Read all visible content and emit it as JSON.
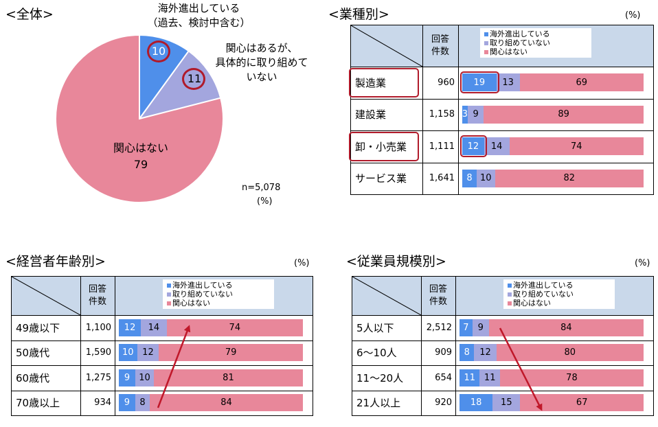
{
  "colors": {
    "s1": "#4f8fea",
    "s2": "#a3a6de",
    "s3": "#e8879a",
    "header": "#c9d8ea",
    "highlight": "#b01a2a"
  },
  "pie": {
    "title": "<全体>",
    "n_label": "n=5,078",
    "unit": "(%)",
    "label_s1_line1": "海外進出している",
    "label_s1_line2": "（過去、検討中含む）",
    "label_s2_line1": "関心はあるが、",
    "label_s2_line2": "具体的に取り組めて",
    "label_s2_line3": "いない",
    "label_s3": "関心はない"
  },
  "legend": {
    "s1": "海外進出している",
    "s2": "取り組めていない",
    "s3": "関心はない"
  },
  "col_header": {
    "line1": "回答",
    "line2": "件数"
  },
  "chart_data": [
    {
      "type": "pie",
      "title": "<全体>",
      "slices": [
        {
          "label": "海外進出している（過去、検討中含む）",
          "value": 10
        },
        {
          "label": "関心はあるが、具体的に取り組めていない",
          "value": 11
        },
        {
          "label": "関心はない",
          "value": 79
        }
      ],
      "annotation": "n=5,078",
      "unit": "(%)"
    },
    {
      "type": "bar",
      "stacked": true,
      "orientation": "horizontal",
      "title": "<業種別>",
      "unit": "(%)",
      "categories": [
        "製造業",
        "建設業",
        "卸・小売業",
        "サービス業"
      ],
      "n": [
        "960",
        "1,158",
        "1,111",
        "1,641"
      ],
      "series": [
        {
          "name": "海外進出している",
          "values": [
            19,
            3,
            12,
            8
          ]
        },
        {
          "name": "取り組めていない",
          "values": [
            13,
            9,
            14,
            10
          ]
        },
        {
          "name": "関心はない",
          "values": [
            69,
            89,
            74,
            82
          ]
        }
      ]
    },
    {
      "type": "bar",
      "stacked": true,
      "orientation": "horizontal",
      "title": "<経営者年齢別>",
      "unit": "(%)",
      "categories": [
        "49歳以下",
        "50歳代",
        "60歳代",
        "70歳以上"
      ],
      "n": [
        "1,100",
        "1,590",
        "1,275",
        "934"
      ],
      "series": [
        {
          "name": "海外進出している",
          "values": [
            12,
            10,
            9,
            9
          ]
        },
        {
          "name": "取り組めていない",
          "values": [
            14,
            12,
            10,
            8
          ]
        },
        {
          "name": "関心はない",
          "values": [
            74,
            79,
            81,
            84
          ]
        }
      ]
    },
    {
      "type": "bar",
      "stacked": true,
      "orientation": "horizontal",
      "title": "<従業員規模別>",
      "unit": "(%)",
      "categories": [
        "5人以下",
        "6～10人",
        "11～20人",
        "21人以上"
      ],
      "n": [
        "2,512",
        "909",
        "654",
        "920"
      ],
      "series": [
        {
          "name": "海外進出している",
          "values": [
            7,
            8,
            11,
            18
          ]
        },
        {
          "name": "取り組めていない",
          "values": [
            9,
            12,
            11,
            15
          ]
        },
        {
          "name": "関心はない",
          "values": [
            84,
            80,
            78,
            67
          ]
        }
      ]
    }
  ]
}
